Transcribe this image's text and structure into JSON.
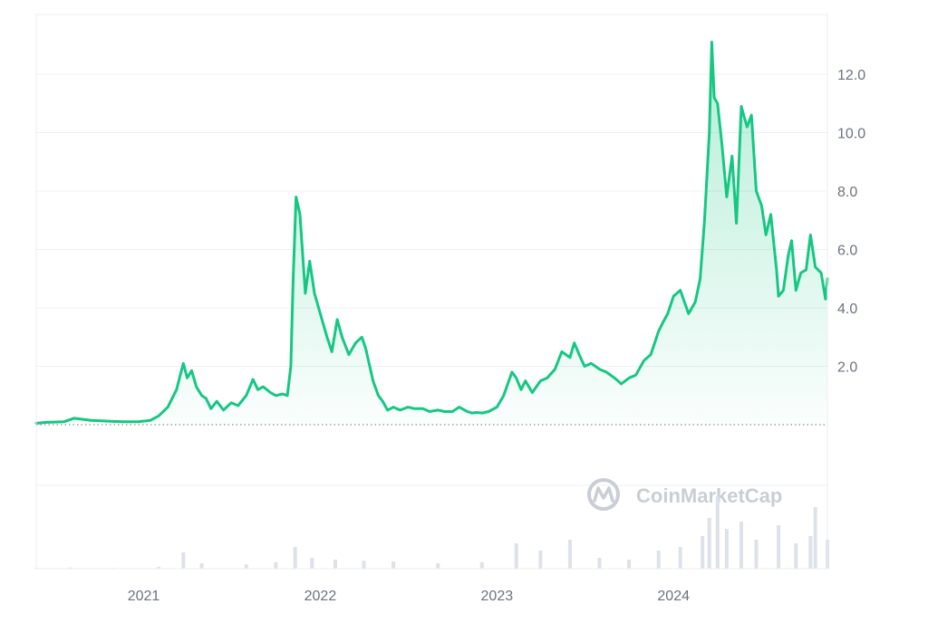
{
  "chart_data": {
    "type": "area",
    "title": "",
    "xlabel": "",
    "ylabel": "",
    "x_tick_labels": [
      "2021",
      "2022",
      "2023",
      "2024"
    ],
    "y_tick_labels": [
      "2.0",
      "4.0",
      "6.0",
      "8.0",
      "10.0",
      "12.0"
    ],
    "ylim": [
      0,
      14
    ],
    "xlim": [
      "2020-05-24",
      "2024-11-14"
    ],
    "baseline": 0,
    "grid": true,
    "legend": "none",
    "colors": {
      "line": "#16c784",
      "fill": "#16c784",
      "volume": "#dde2ea"
    },
    "series": [
      {
        "x": [
          "2020-05-24",
          "2020-06-15",
          "2020-07-20",
          "2020-08-10",
          "2020-09-15",
          "2020-10-20",
          "2020-11-20",
          "2020-12-20",
          "2021-01-15",
          "2021-02-01",
          "2021-02-20",
          "2021-03-10",
          "2021-03-24",
          "2021-04-01",
          "2021-04-10",
          "2021-04-20",
          "2021-05-01",
          "2021-05-10",
          "2021-05-20",
          "2021-06-01",
          "2021-06-15",
          "2021-07-01",
          "2021-07-15",
          "2021-08-01",
          "2021-08-15",
          "2021-08-25",
          "2021-09-05",
          "2021-09-20",
          "2021-10-01",
          "2021-10-15",
          "2021-10-25",
          "2021-11-01",
          "2021-11-06",
          "2021-11-12",
          "2021-11-20",
          "2021-12-01",
          "2021-12-10",
          "2021-12-20",
          "2022-01-01",
          "2022-01-15",
          "2022-01-25",
          "2022-02-05",
          "2022-02-15",
          "2022-03-01",
          "2022-03-15",
          "2022-03-28",
          "2022-04-05",
          "2022-04-20",
          "2022-05-01",
          "2022-05-10",
          "2022-05-20",
          "2022-06-01",
          "2022-06-15",
          "2022-07-01",
          "2022-07-15",
          "2022-08-01",
          "2022-08-15",
          "2022-09-01",
          "2022-09-15",
          "2022-10-01",
          "2022-10-15",
          "2022-11-01",
          "2022-11-10",
          "2022-11-20",
          "2022-12-01",
          "2022-12-15",
          "2023-01-01",
          "2023-01-15",
          "2023-02-01",
          "2023-02-10",
          "2023-02-20",
          "2023-03-01",
          "2023-03-15",
          "2023-04-01",
          "2023-04-15",
          "2023-05-01",
          "2023-05-15",
          "2023-06-01",
          "2023-06-10",
          "2023-06-20",
          "2023-07-01",
          "2023-07-15",
          "2023-08-01",
          "2023-08-15",
          "2023-09-01",
          "2023-09-15",
          "2023-10-01",
          "2023-10-15",
          "2023-11-01",
          "2023-11-15",
          "2023-12-01",
          "2023-12-10",
          "2023-12-20",
          "2024-01-01",
          "2024-01-15",
          "2024-02-01",
          "2024-02-15",
          "2024-02-25",
          "2024-03-05",
          "2024-03-15",
          "2024-03-20",
          "2024-03-25",
          "2024-04-01",
          "2024-04-10",
          "2024-04-20",
          "2024-05-01",
          "2024-05-10",
          "2024-05-20",
          "2024-05-25",
          "2024-06-01",
          "2024-06-10",
          "2024-06-20",
          "2024-07-01",
          "2024-07-10",
          "2024-07-20",
          "2024-08-01",
          "2024-08-05",
          "2024-08-15",
          "2024-08-25",
          "2024-09-01",
          "2024-09-10",
          "2024-09-20",
          "2024-10-01",
          "2024-10-10",
          "2024-10-20",
          "2024-11-01",
          "2024-11-10",
          "2024-11-14"
        ],
        "y": [
          0.05,
          0.08,
          0.1,
          0.22,
          0.15,
          0.12,
          0.1,
          0.1,
          0.15,
          0.3,
          0.6,
          1.2,
          2.1,
          1.6,
          1.85,
          1.3,
          1.0,
          0.9,
          0.55,
          0.8,
          0.5,
          0.75,
          0.65,
          1.0,
          1.55,
          1.2,
          1.3,
          1.1,
          1.0,
          1.05,
          1.0,
          2.0,
          5.0,
          7.8,
          7.2,
          4.5,
          5.6,
          4.5,
          3.8,
          3.0,
          2.5,
          3.6,
          3.0,
          2.4,
          2.8,
          3.0,
          2.6,
          1.5,
          1.0,
          0.8,
          0.5,
          0.6,
          0.5,
          0.6,
          0.55,
          0.55,
          0.45,
          0.5,
          0.45,
          0.45,
          0.6,
          0.45,
          0.4,
          0.42,
          0.4,
          0.45,
          0.6,
          1.0,
          1.8,
          1.6,
          1.2,
          1.5,
          1.1,
          1.5,
          1.6,
          1.9,
          2.5,
          2.3,
          2.8,
          2.4,
          2.0,
          2.1,
          1.9,
          1.8,
          1.6,
          1.4,
          1.6,
          1.7,
          2.2,
          2.4,
          3.2,
          3.5,
          3.8,
          4.4,
          4.6,
          3.8,
          4.2,
          5.0,
          7.0,
          10.0,
          13.1,
          11.2,
          11.0,
          9.6,
          7.8,
          9.2,
          6.9,
          10.9,
          10.6,
          10.2,
          10.6,
          8.0,
          7.5,
          6.5,
          7.2,
          5.3,
          4.4,
          4.6,
          5.8,
          6.3,
          4.6,
          5.2,
          5.3,
          6.5,
          5.4,
          5.2,
          4.3,
          5.0
        ]
      }
    ],
    "volume": {
      "x": [
        "2020-05-24",
        "2020-08-01",
        "2020-11-01",
        "2021-02-01",
        "2021-03-24",
        "2021-05-01",
        "2021-08-01",
        "2021-10-01",
        "2021-11-10",
        "2021-12-15",
        "2022-02-01",
        "2022-04-01",
        "2022-06-01",
        "2022-09-01",
        "2022-12-01",
        "2023-02-10",
        "2023-04-01",
        "2023-06-01",
        "2023-08-01",
        "2023-10-01",
        "2023-12-01",
        "2024-01-15",
        "2024-03-01",
        "2024-03-15",
        "2024-04-01",
        "2024-04-20",
        "2024-05-20",
        "2024-06-20",
        "2024-08-05",
        "2024-09-10",
        "2024-10-10",
        "2024-10-20",
        "2024-11-14"
      ],
      "y": [
        0.2,
        0.3,
        0.2,
        0.5,
        4.5,
        1.5,
        1.2,
        1.8,
        6.0,
        3.0,
        2.5,
        2.2,
        2.0,
        1.5,
        1.8,
        7.0,
        5.0,
        8.0,
        3.0,
        2.5,
        5.0,
        6.0,
        9.0,
        14.0,
        20.0,
        11.0,
        13.0,
        8.0,
        12.0,
        7.0,
        9.0,
        17.0,
        8.0
      ],
      "max": 20
    },
    "watermark": "CoinMarketCap"
  }
}
